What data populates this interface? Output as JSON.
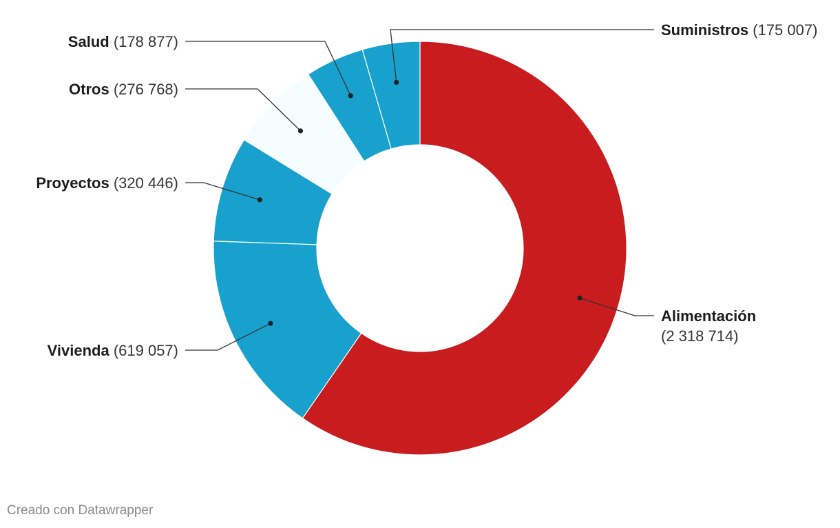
{
  "chart_data": {
    "type": "pie",
    "variant": "donut",
    "start": "top",
    "direction": "clockwise",
    "slices": [
      {
        "name": "Alimentación",
        "value_label": "(2 318 714)",
        "value": 2318714,
        "color": "#c81c1e",
        "label_side": "right"
      },
      {
        "name": "Vivienda",
        "value_label": "(619 057)",
        "value": 619057,
        "color": "#18a1cd",
        "label_side": "left"
      },
      {
        "name": "Proyectos",
        "value_label": "(320 446)",
        "value": 320446,
        "color": "#18a1cd",
        "label_side": "left"
      },
      {
        "name": "Otros",
        "value_label": "(276 768)",
        "value": 276768,
        "color": "#f6fdff",
        "label_side": "left"
      },
      {
        "name": "Salud",
        "value_label": "(178 877)",
        "value": 178877,
        "color": "#18a1cd",
        "label_side": "left"
      },
      {
        "name": "Suministros",
        "value_label": "(175 007)",
        "value": 175007,
        "color": "#18a1cd",
        "label_side": "right"
      }
    ],
    "legend": "none"
  },
  "credit": "Creado con Datawrapper"
}
